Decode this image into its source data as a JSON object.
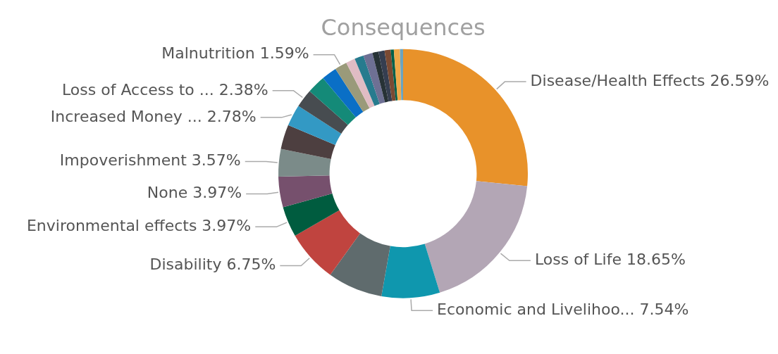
{
  "chart_data": {
    "type": "donut",
    "title": "Consequences",
    "categories": [
      "Disease/Health Effects",
      "Loss of Life",
      "Economic and Livelihoo...",
      null,
      "Disability",
      "Environmental effects",
      "None",
      "Impoverishment",
      null,
      "Increased Money ...",
      "Loss of Access to ...",
      null,
      null,
      "Malnutrition",
      null,
      null,
      null,
      null,
      null,
      null,
      null,
      null,
      null
    ],
    "values": [
      26.59,
      18.65,
      7.54,
      7.14,
      6.75,
      3.97,
      3.97,
      3.57,
      3.17,
      2.78,
      2.38,
      2.38,
      1.98,
      1.59,
      1.19,
      1.19,
      1.19,
      0.79,
      0.79,
      0.79,
      0.4,
      0.79,
      0.4
    ],
    "value_labels": [
      "26.59%",
      "18.65%",
      "7.54%",
      null,
      "6.75%",
      "3.97%",
      "3.97%",
      "3.57%",
      null,
      "2.78%",
      "2.38%",
      null,
      null,
      "1.59%",
      null,
      null,
      null,
      null,
      null,
      null,
      null,
      null,
      null
    ],
    "colors": [
      "#e8922a",
      "#b3a6b5",
      "#0f97ae",
      "#5f6b6d",
      "#c0443f",
      "#005c3f",
      "#76506d",
      "#7b8b89",
      "#4d3f40",
      "#3399c4",
      "#474c50",
      "#148a78",
      "#0a6fc6",
      "#9a9a7a",
      "#e0bcc4",
      "#277b8e",
      "#6e7094",
      "#273236",
      "#353e50",
      "#7a4a33",
      "#00604a",
      "#f0a94a",
      "#6aa4c0"
    ],
    "legend": false
  }
}
